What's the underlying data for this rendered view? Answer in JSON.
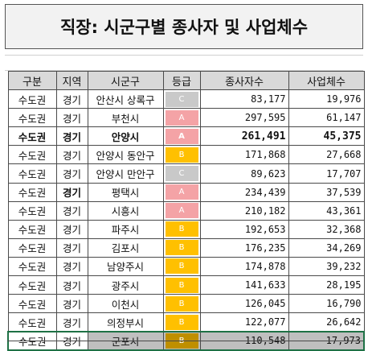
{
  "title": "직장: 시군구별 종사자 및 사업체수",
  "colors": {
    "A": "#f4a3a6",
    "B": "#ffc000",
    "C": "#c9c9c9",
    "B_selected": "#bf8f00"
  },
  "table": {
    "headers": [
      "구분",
      "지역",
      "시군구",
      "등급",
      "종사자수",
      "사업체수"
    ],
    "rows": [
      {
        "region": "수도권",
        "province": "경기",
        "city": "안산시 상록구",
        "grade": "C",
        "workers": "83,177",
        "businesses": "19,976",
        "bold": false
      },
      {
        "region": "수도권",
        "province": "경기",
        "city": "부천시",
        "grade": "A",
        "workers": "297,595",
        "businesses": "61,147",
        "bold": false
      },
      {
        "region": "수도권",
        "province": "경기",
        "city": "안양시",
        "grade": "A",
        "workers": "261,491",
        "businesses": "45,375",
        "bold": true
      },
      {
        "region": "수도권",
        "province": "경기",
        "city": "안양시 동안구",
        "grade": "B",
        "workers": "171,868",
        "businesses": "27,668",
        "bold": false
      },
      {
        "region": "수도권",
        "province": "경기",
        "city": "안양시 만안구",
        "grade": "C",
        "workers": "89,623",
        "businesses": "17,707",
        "bold": false
      },
      {
        "region": "수도권",
        "province": "경기",
        "city": "평택시",
        "grade": "A",
        "workers": "234,439",
        "businesses": "37,539",
        "bold": false,
        "bold_province": true
      },
      {
        "region": "수도권",
        "province": "경기",
        "city": "시흥시",
        "grade": "A",
        "workers": "210,182",
        "businesses": "43,361",
        "bold": false
      },
      {
        "region": "수도권",
        "province": "경기",
        "city": "파주시",
        "grade": "B",
        "workers": "192,653",
        "businesses": "32,368",
        "bold": false
      },
      {
        "region": "수도권",
        "province": "경기",
        "city": "김포시",
        "grade": "B",
        "workers": "176,235",
        "businesses": "34,269",
        "bold": false
      },
      {
        "region": "수도권",
        "province": "경기",
        "city": "남양주시",
        "grade": "B",
        "workers": "174,878",
        "businesses": "39,232",
        "bold": false
      },
      {
        "region": "수도권",
        "province": "경기",
        "city": "광주시",
        "grade": "B",
        "workers": "141,633",
        "businesses": "28,195",
        "bold": false
      },
      {
        "region": "수도권",
        "province": "경기",
        "city": "이천시",
        "grade": "B",
        "workers": "126,045",
        "businesses": "16,790",
        "bold": false
      },
      {
        "region": "수도권",
        "province": "경기",
        "city": "의정부시",
        "grade": "B",
        "workers": "122,077",
        "businesses": "26,642",
        "bold": false
      },
      {
        "region": "수도권",
        "province": "경기",
        "city": "군포시",
        "grade": "B",
        "workers": "110,548",
        "businesses": "17,973",
        "bold": false,
        "selected": true
      }
    ]
  }
}
